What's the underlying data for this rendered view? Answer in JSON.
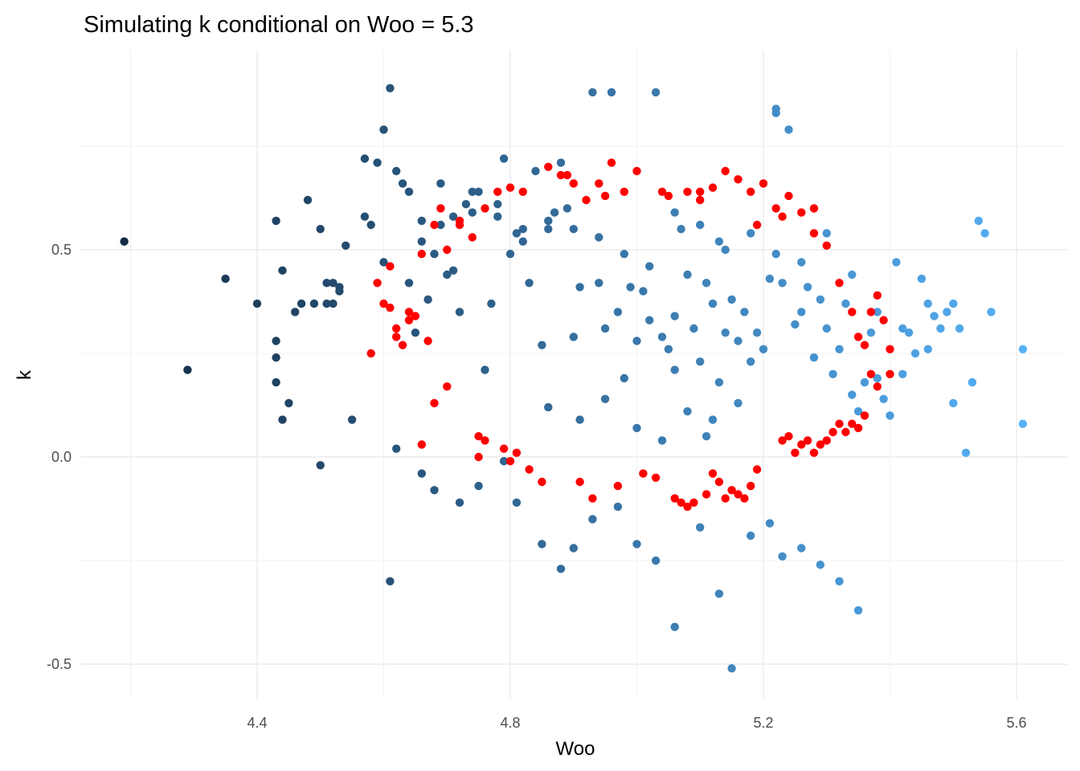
{
  "chart_data": {
    "type": "scatter",
    "title": "Simulating k conditional on Woo = 5.3",
    "xlabel": "Woo",
    "ylabel": "k",
    "xlim": [
      4.15,
      5.65
    ],
    "ylim": [
      -0.58,
      0.95
    ],
    "x_ticks": [
      4.4,
      4.8,
      5.2,
      5.6
    ],
    "x_tick_labels": [
      "4.4",
      "4.8",
      "5.2",
      "5.6"
    ],
    "y_ticks": [
      -0.5,
      0.0,
      0.5
    ],
    "y_tick_labels": [
      "-0.5",
      "0.0",
      "0.5"
    ],
    "grid": true,
    "legend": "none",
    "colors": {
      "gradient_low": "#132b43",
      "gradient_high": "#56b1f7",
      "highlight": "#ff0000",
      "grid": "#ebebeb"
    },
    "series": [
      {
        "color_by": "x",
        "x": [
          4.19,
          4.29,
          4.35,
          4.4,
          4.43,
          4.43,
          4.43,
          4.44,
          4.43,
          4.44,
          4.45,
          4.46,
          4.47,
          4.48,
          4.49,
          4.5,
          4.5,
          4.51,
          4.51,
          4.52,
          4.52,
          4.53,
          4.53,
          4.54,
          4.55,
          4.57,
          4.57,
          4.58,
          4.59,
          4.6,
          4.6,
          4.61,
          4.62,
          4.63,
          4.64,
          4.65,
          4.66,
          4.67,
          4.68,
          4.69,
          4.7,
          4.71,
          4.72,
          4.73,
          4.74,
          4.75,
          4.76,
          4.77,
          4.78,
          4.79,
          4.8,
          4.81,
          4.82,
          4.83,
          4.84,
          4.85,
          4.86,
          4.87,
          4.88,
          4.89,
          4.9,
          4.91,
          4.93,
          4.94,
          4.95,
          4.96,
          4.97,
          4.98,
          4.99,
          5.0,
          5.01,
          5.02,
          5.03,
          5.04,
          5.05,
          5.06,
          5.07,
          5.08,
          5.09,
          5.1,
          5.11,
          5.12,
          5.13,
          5.14,
          5.15,
          5.16,
          5.17,
          5.18,
          5.19,
          5.2,
          5.21,
          5.22,
          5.22,
          5.23,
          5.24,
          5.25,
          5.26,
          5.27,
          5.28,
          5.29,
          5.3,
          5.31,
          5.32,
          5.33,
          5.34,
          5.35,
          5.36,
          5.37,
          5.38,
          5.39,
          5.4,
          5.41,
          5.42,
          5.43,
          5.44,
          5.45,
          5.46,
          5.47,
          5.48,
          5.49,
          5.5,
          5.51,
          5.52,
          5.53,
          5.54,
          5.55,
          5.56,
          5.61,
          5.61,
          4.61,
          4.62,
          4.66,
          4.68,
          4.72,
          4.75,
          4.79,
          4.81,
          4.85,
          4.88,
          4.9,
          4.93,
          4.97,
          5.0,
          5.03,
          5.06,
          5.1,
          5.13,
          5.15,
          5.18,
          5.21,
          5.23,
          5.26,
          5.29,
          5.32,
          5.35,
          4.86,
          4.91,
          4.95,
          5.0,
          5.04,
          5.08,
          5.12,
          5.16,
          5.06,
          5.11,
          5.13,
          4.64,
          4.66,
          4.69,
          4.71,
          4.74,
          4.78,
          4.82,
          4.86,
          4.9,
          4.94,
          4.98,
          5.02,
          5.06,
          5.1,
          5.14,
          5.18,
          5.22,
          5.26,
          5.3,
          5.34,
          5.38,
          5.42,
          5.46,
          5.5
        ],
        "y": [
          0.52,
          0.21,
          0.43,
          0.37,
          0.28,
          0.24,
          0.18,
          0.09,
          0.57,
          0.45,
          0.13,
          0.35,
          0.37,
          0.62,
          0.37,
          0.55,
          -0.02,
          0.42,
          0.37,
          0.37,
          0.42,
          0.41,
          0.4,
          0.51,
          0.09,
          0.72,
          0.58,
          0.56,
          0.71,
          0.79,
          0.47,
          0.89,
          0.69,
          0.66,
          0.42,
          0.3,
          0.52,
          0.38,
          0.49,
          0.66,
          0.44,
          0.45,
          0.35,
          0.61,
          0.59,
          0.64,
          0.21,
          0.37,
          0.58,
          0.72,
          0.49,
          0.54,
          0.52,
          0.42,
          0.69,
          0.27,
          0.55,
          0.59,
          0.71,
          0.6,
          0.29,
          0.41,
          0.88,
          0.42,
          0.31,
          0.88,
          0.35,
          0.19,
          0.41,
          0.28,
          0.4,
          0.33,
          0.88,
          0.29,
          0.26,
          0.34,
          0.55,
          0.44,
          0.31,
          0.23,
          0.42,
          0.37,
          0.52,
          0.3,
          0.38,
          0.28,
          0.35,
          0.23,
          0.3,
          0.26,
          0.43,
          0.84,
          0.83,
          0.42,
          0.79,
          0.32,
          0.35,
          0.41,
          0.24,
          0.38,
          0.31,
          0.2,
          0.26,
          0.37,
          0.15,
          0.11,
          0.18,
          0.3,
          0.19,
          0.14,
          0.1,
          0.47,
          0.2,
          0.3,
          0.25,
          0.43,
          0.37,
          0.34,
          0.31,
          0.35,
          0.37,
          0.31,
          0.01,
          0.18,
          0.57,
          0.54,
          0.35,
          0.26,
          0.08,
          -0.3,
          0.02,
          -0.04,
          -0.08,
          -0.11,
          -0.07,
          -0.01,
          -0.11,
          -0.21,
          -0.27,
          -0.22,
          -0.15,
          -0.12,
          -0.21,
          -0.25,
          -0.41,
          -0.17,
          -0.33,
          -0.51,
          -0.19,
          -0.16,
          -0.24,
          -0.22,
          -0.26,
          -0.3,
          -0.37,
          0.12,
          0.09,
          0.14,
          0.07,
          0.04,
          0.11,
          0.09,
          0.13,
          0.21,
          0.05,
          0.18,
          0.64,
          0.57,
          0.56,
          0.58,
          0.64,
          0.61,
          0.55,
          0.57,
          0.55,
          0.53,
          0.49,
          0.46,
          0.59,
          0.56,
          0.5,
          0.54,
          0.49,
          0.47,
          0.54,
          0.44,
          0.35,
          0.31,
          0.26,
          0.13
        ]
      },
      {
        "name": "",
        "color": "#ff0000",
        "x": [
          4.58,
          4.6,
          4.61,
          4.62,
          4.63,
          4.64,
          4.65,
          4.66,
          4.67,
          4.68,
          4.7,
          4.72,
          4.74,
          4.76,
          4.78,
          4.8,
          4.82,
          4.86,
          4.88,
          4.9,
          4.92,
          4.94,
          4.96,
          4.98,
          5.0,
          5.04,
          5.08,
          5.1,
          5.12,
          5.14,
          5.16,
          5.18,
          5.2,
          5.22,
          5.24,
          5.26,
          5.28,
          5.3,
          5.32,
          5.34,
          5.35,
          5.36,
          5.37,
          5.38,
          5.39,
          5.4,
          5.4,
          5.38,
          5.37,
          5.36,
          5.35,
          5.34,
          5.33,
          5.32,
          5.31,
          5.3,
          5.29,
          5.28,
          5.27,
          5.26,
          5.25,
          5.24,
          5.23,
          4.59,
          4.61,
          4.62,
          4.64,
          4.66,
          4.68,
          4.7,
          4.75,
          4.76,
          4.79,
          4.81,
          4.83,
          4.91,
          4.93,
          4.97,
          5.01,
          5.03,
          5.06,
          5.07,
          5.08,
          5.09,
          5.11,
          5.12,
          5.13,
          5.14,
          5.15,
          5.16,
          5.17,
          5.18,
          5.19,
          4.69,
          4.72,
          4.75,
          4.8,
          4.85,
          4.89,
          4.95,
          5.05,
          5.1,
          5.19,
          5.23,
          5.28
        ],
        "y": [
          0.25,
          0.37,
          0.46,
          0.31,
          0.27,
          0.35,
          0.34,
          0.49,
          0.28,
          0.56,
          0.5,
          0.56,
          0.53,
          0.6,
          0.64,
          0.65,
          0.64,
          0.7,
          0.68,
          0.66,
          0.62,
          0.66,
          0.71,
          0.64,
          0.69,
          0.64,
          0.64,
          0.64,
          0.65,
          0.69,
          0.67,
          0.64,
          0.66,
          0.6,
          0.63,
          0.59,
          0.54,
          0.51,
          0.42,
          0.35,
          0.29,
          0.27,
          0.35,
          0.39,
          0.33,
          0.26,
          0.2,
          0.17,
          0.2,
          0.1,
          0.07,
          0.08,
          0.06,
          0.08,
          0.06,
          0.04,
          0.03,
          0.01,
          0.04,
          0.03,
          0.01,
          0.05,
          0.04,
          0.42,
          0.36,
          0.29,
          0.33,
          0.03,
          0.13,
          0.17,
          0.05,
          0.04,
          0.02,
          0.01,
          -0.03,
          -0.06,
          -0.1,
          -0.07,
          -0.04,
          -0.05,
          -0.1,
          -0.11,
          -0.12,
          -0.11,
          -0.09,
          -0.04,
          -0.06,
          -0.1,
          -0.08,
          -0.09,
          -0.1,
          -0.07,
          -0.03,
          0.6,
          0.57,
          0.0,
          -0.01,
          -0.06,
          0.68,
          0.63,
          0.63,
          0.62,
          0.56,
          0.58,
          0.6
        ]
      }
    ]
  }
}
